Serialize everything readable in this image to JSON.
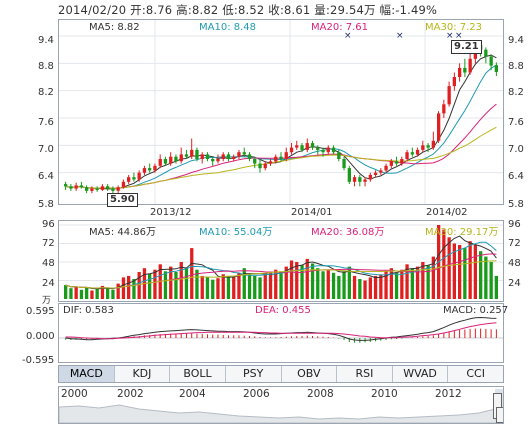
{
  "header": {
    "text": "2014/02/20 开:8.76  高:8.82  低:8.52  收:8.61  量:29.54万  幅:-1.49%"
  },
  "price_panel": {
    "ma5": "MA5: 8.82",
    "ma10": "MA10: 8.48",
    "ma20": "MA20: 7.61",
    "ma30": "MA30: 7.23",
    "y_ticks": [
      "9.4",
      "8.8",
      "8.2",
      "7.6",
      "7.0",
      "6.4",
      "5.8"
    ],
    "x_labels": [
      "2013/12",
      "2014/01",
      "2014/02"
    ],
    "low_marker": "5.90",
    "high_marker": "9.21",
    "colors": {
      "ma5": "#333333",
      "ma10": "#1f9bb3",
      "ma20": "#d9227a",
      "ma30": "#b7b61a",
      "up": "#e02020",
      "down": "#1a9a1a"
    }
  },
  "volume_panel": {
    "ma5": "MA5: 44.86万",
    "ma10": "MA10: 55.04万",
    "ma20": "MA20: 36.08万",
    "ma30": "MA30: 29.17万",
    "y_ticks": [
      "96",
      "72",
      "48",
      "24"
    ],
    "unit": "万"
  },
  "macd_panel": {
    "dif": "DIF: 0.583",
    "dea": "DEA: 0.455",
    "macd": "MACD: 0.257",
    "y_ticks": [
      "0.595",
      "0.000",
      "-0.595"
    ]
  },
  "tabs": [
    "MACD",
    "KDJ",
    "BOLL",
    "PSY",
    "OBV",
    "RSI",
    "WVAD",
    "CCI"
  ],
  "active_tab": "MACD",
  "years": [
    "2000",
    "2002",
    "2004",
    "2006",
    "2008",
    "2010",
    "2012"
  ],
  "chart_data": {
    "type": "candlestick",
    "y_range": [
      5.8,
      9.4
    ],
    "candles": [
      [
        6.15,
        6.1,
        6.2,
        6.02
      ],
      [
        6.1,
        6.05,
        6.15,
        6.0
      ],
      [
        6.05,
        6.12,
        6.18,
        6.0
      ],
      [
        6.12,
        6.08,
        6.2,
        6.05
      ],
      [
        6.08,
        6.0,
        6.12,
        5.95
      ],
      [
        6.0,
        6.05,
        6.1,
        5.95
      ],
      [
        6.05,
        6.02,
        6.1,
        5.98
      ],
      [
        6.02,
        6.1,
        6.15,
        6.0
      ],
      [
        6.1,
        6.05,
        6.15,
        6.0
      ],
      [
        6.05,
        6.0,
        6.1,
        5.95
      ],
      [
        6.0,
        6.08,
        6.12,
        5.9
      ],
      [
        6.08,
        6.2,
        6.25,
        6.05
      ],
      [
        6.2,
        6.3,
        6.35,
        6.15
      ],
      [
        6.3,
        6.25,
        6.4,
        6.2
      ],
      [
        6.25,
        6.4,
        6.45,
        6.2
      ],
      [
        6.4,
        6.5,
        6.55,
        6.35
      ],
      [
        6.5,
        6.45,
        6.6,
        6.4
      ],
      [
        6.45,
        6.55,
        6.6,
        6.4
      ],
      [
        6.55,
        6.7,
        6.8,
        6.5
      ],
      [
        6.7,
        6.6,
        6.75,
        6.55
      ],
      [
        6.6,
        6.75,
        6.85,
        6.55
      ],
      [
        6.75,
        6.65,
        6.8,
        6.6
      ],
      [
        6.65,
        6.8,
        6.95,
        6.6
      ],
      [
        6.8,
        6.75,
        6.9,
        6.7
      ],
      [
        6.75,
        6.9,
        7.15,
        6.7
      ],
      [
        6.9,
        6.7,
        6.95,
        6.65
      ],
      [
        6.7,
        6.8,
        6.85,
        6.6
      ],
      [
        6.8,
        6.7,
        6.85,
        6.65
      ],
      [
        6.7,
        6.65,
        6.75,
        6.55
      ],
      [
        6.65,
        6.7,
        6.8,
        6.6
      ],
      [
        6.7,
        6.8,
        6.85,
        6.65
      ],
      [
        6.8,
        6.7,
        6.85,
        6.65
      ],
      [
        6.7,
        6.75,
        6.8,
        6.65
      ],
      [
        6.75,
        6.85,
        6.9,
        6.7
      ],
      [
        6.85,
        6.8,
        6.95,
        6.75
      ],
      [
        6.8,
        6.7,
        6.85,
        6.65
      ],
      [
        6.7,
        6.6,
        6.75,
        6.5
      ],
      [
        6.6,
        6.5,
        6.7,
        6.4
      ],
      [
        6.5,
        6.6,
        6.65,
        6.45
      ],
      [
        6.6,
        6.65,
        6.7,
        6.55
      ],
      [
        6.65,
        6.75,
        6.8,
        6.6
      ],
      [
        6.75,
        6.7,
        6.85,
        6.65
      ],
      [
        6.7,
        6.85,
        6.95,
        6.65
      ],
      [
        6.85,
        6.95,
        7.05,
        6.8
      ],
      [
        6.95,
        7.0,
        7.1,
        6.9
      ],
      [
        7.0,
        6.9,
        7.05,
        6.85
      ],
      [
        6.9,
        7.05,
        7.15,
        6.85
      ],
      [
        7.05,
        6.95,
        7.1,
        6.9
      ],
      [
        6.95,
        6.9,
        7.0,
        6.8
      ],
      [
        6.9,
        6.85,
        6.95,
        6.75
      ],
      [
        6.85,
        6.95,
        7.0,
        6.8
      ],
      [
        6.95,
        6.85,
        7.0,
        6.8
      ],
      [
        6.85,
        6.7,
        6.9,
        6.65
      ],
      [
        6.7,
        6.5,
        6.75,
        6.45
      ],
      [
        6.5,
        6.2,
        6.55,
        6.15
      ],
      [
        6.2,
        6.3,
        6.35,
        6.1
      ],
      [
        6.3,
        6.2,
        6.35,
        6.1
      ],
      [
        6.2,
        6.25,
        6.3,
        6.1
      ],
      [
        6.25,
        6.35,
        6.4,
        6.2
      ],
      [
        6.35,
        6.4,
        6.45,
        6.3
      ],
      [
        6.4,
        6.45,
        6.5,
        6.35
      ],
      [
        6.45,
        6.55,
        6.6,
        6.4
      ],
      [
        6.55,
        6.65,
        6.7,
        6.5
      ],
      [
        6.65,
        6.6,
        6.75,
        6.55
      ],
      [
        6.6,
        6.7,
        6.75,
        6.55
      ],
      [
        6.7,
        6.85,
        6.9,
        6.65
      ],
      [
        6.85,
        6.8,
        6.95,
        6.75
      ],
      [
        6.8,
        6.9,
        6.95,
        6.75
      ],
      [
        6.9,
        7.0,
        7.1,
        6.85
      ],
      [
        7.0,
        6.95,
        7.05,
        6.85
      ],
      [
        6.95,
        7.1,
        7.3,
        6.9
      ],
      [
        7.1,
        7.7,
        7.75,
        7.05
      ],
      [
        7.7,
        7.9,
        8.0,
        7.6
      ],
      [
        7.9,
        8.3,
        8.4,
        7.85
      ],
      [
        8.3,
        8.5,
        8.6,
        8.2
      ],
      [
        8.5,
        8.7,
        8.8,
        8.4
      ],
      [
        8.7,
        8.6,
        8.9,
        8.5
      ],
      [
        8.6,
        8.9,
        9.1,
        8.55
      ],
      [
        8.9,
        9.2,
        9.21,
        8.8
      ],
      [
        9.2,
        9.1,
        9.21,
        8.95
      ],
      [
        9.1,
        8.95,
        9.15,
        8.8
      ],
      [
        8.95,
        8.75,
        9.0,
        8.65
      ],
      [
        8.76,
        8.61,
        8.82,
        8.52
      ]
    ],
    "volume": [
      18,
      14,
      16,
      12,
      15,
      11,
      13,
      17,
      14,
      12,
      20,
      28,
      30,
      26,
      35,
      40,
      33,
      38,
      45,
      36,
      42,
      35,
      48,
      40,
      66,
      38,
      30,
      28,
      25,
      27,
      32,
      30,
      28,
      34,
      40,
      33,
      30,
      28,
      32,
      35,
      38,
      36,
      42,
      50,
      48,
      44,
      52,
      46,
      40,
      36,
      38,
      34,
      30,
      36,
      42,
      30,
      26,
      24,
      28,
      30,
      32,
      36,
      40,
      34,
      38,
      45,
      40,
      42,
      48,
      44,
      55,
      96,
      90,
      80,
      72,
      70,
      66,
      75,
      70,
      62,
      55,
      48,
      30
    ],
    "macd_hist": [
      -0.05,
      -0.06,
      -0.05,
      -0.04,
      -0.05,
      -0.04,
      -0.03,
      -0.02,
      -0.02,
      -0.01,
      0.0,
      0.02,
      0.04,
      0.05,
      0.06,
      0.08,
      0.09,
      0.1,
      0.12,
      0.12,
      0.13,
      0.13,
      0.14,
      0.14,
      0.15,
      0.13,
      0.12,
      0.11,
      0.1,
      0.1,
      0.09,
      0.08,
      0.08,
      0.08,
      0.07,
      0.06,
      0.05,
      0.03,
      0.02,
      0.02,
      0.02,
      0.03,
      0.04,
      0.05,
      0.06,
      0.06,
      0.07,
      0.06,
      0.05,
      0.04,
      0.03,
      0.01,
      -0.02,
      -0.06,
      -0.12,
      -0.14,
      -0.14,
      -0.13,
      -0.12,
      -0.1,
      -0.08,
      -0.06,
      -0.04,
      -0.03,
      -0.02,
      0.0,
      0.02,
      0.03,
      0.05,
      0.06,
      0.08,
      0.12,
      0.16,
      0.2,
      0.22,
      0.24,
      0.25,
      0.27,
      0.28,
      0.28,
      0.27,
      0.26,
      0.257
    ],
    "dif": [
      0.0,
      -0.02,
      -0.03,
      -0.04,
      -0.05,
      -0.05,
      -0.04,
      -0.03,
      -0.02,
      -0.01,
      0.0,
      0.02,
      0.05,
      0.08,
      0.1,
      0.13,
      0.15,
      0.17,
      0.19,
      0.2,
      0.21,
      0.22,
      0.23,
      0.24,
      0.25,
      0.24,
      0.23,
      0.22,
      0.21,
      0.2,
      0.2,
      0.19,
      0.19,
      0.19,
      0.18,
      0.17,
      0.15,
      0.13,
      0.12,
      0.12,
      0.12,
      0.13,
      0.14,
      0.15,
      0.16,
      0.16,
      0.17,
      0.16,
      0.15,
      0.14,
      0.13,
      0.11,
      0.08,
      0.03,
      -0.03,
      -0.06,
      -0.07,
      -0.07,
      -0.06,
      -0.04,
      -0.02,
      0.0,
      0.02,
      0.03,
      0.05,
      0.07,
      0.09,
      0.11,
      0.14,
      0.16,
      0.19,
      0.25,
      0.31,
      0.38,
      0.44,
      0.49,
      0.53,
      0.57,
      0.6,
      0.61,
      0.6,
      0.59,
      0.583
    ],
    "dea": [
      0.03,
      0.03,
      0.02,
      0.01,
      0.0,
      -0.01,
      -0.01,
      -0.02,
      -0.02,
      -0.02,
      -0.01,
      0.0,
      0.01,
      0.02,
      0.03,
      0.05,
      0.06,
      0.08,
      0.09,
      0.1,
      0.11,
      0.12,
      0.13,
      0.14,
      0.15,
      0.16,
      0.16,
      0.17,
      0.17,
      0.17,
      0.17,
      0.17,
      0.17,
      0.17,
      0.17,
      0.17,
      0.17,
      0.16,
      0.16,
      0.15,
      0.15,
      0.14,
      0.14,
      0.14,
      0.14,
      0.14,
      0.14,
      0.14,
      0.14,
      0.14,
      0.14,
      0.14,
      0.13,
      0.12,
      0.1,
      0.08,
      0.06,
      0.05,
      0.03,
      0.02,
      0.01,
      0.01,
      0.01,
      0.01,
      0.02,
      0.03,
      0.04,
      0.05,
      0.07,
      0.08,
      0.1,
      0.12,
      0.15,
      0.18,
      0.22,
      0.26,
      0.3,
      0.34,
      0.37,
      0.4,
      0.42,
      0.44,
      0.455
    ]
  }
}
